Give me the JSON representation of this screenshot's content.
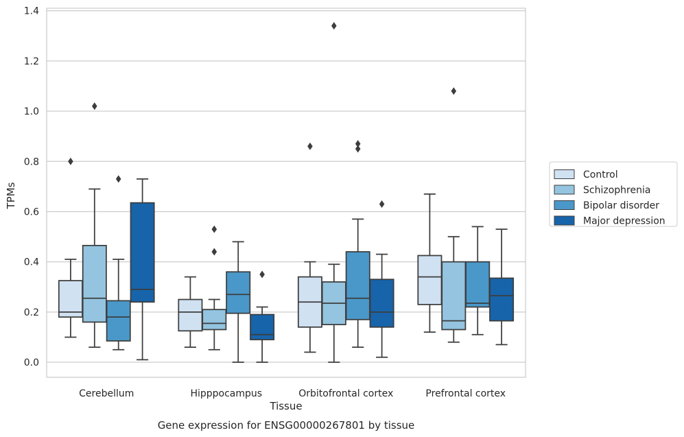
{
  "chart_data": {
    "type": "box",
    "xlabel": "Tissue",
    "ylabel": "TPMs",
    "caption": "Gene expression for ENSG00000267801 by tissue",
    "ylim": [
      -0.06,
      1.41
    ],
    "yticks": [
      "0.0",
      "0.2",
      "0.4",
      "0.6",
      "0.8",
      "1.0",
      "1.2",
      "1.4"
    ],
    "grid": "horizontal",
    "legend_position": "right",
    "categories": [
      "Cerebellum",
      "Hipppocampus",
      "Orbitofrontal cortex",
      "Prefrontal cortex"
    ],
    "series": [
      {
        "name": "Control",
        "color": "#d0e1f2",
        "boxes": [
          {
            "whislo": 0.1,
            "q1": 0.18,
            "med": 0.2,
            "q3": 0.325,
            "whishi": 0.41,
            "fliers": [
              0.8
            ]
          },
          {
            "whislo": 0.06,
            "q1": 0.125,
            "med": 0.2,
            "q3": 0.25,
            "whishi": 0.34,
            "fliers": []
          },
          {
            "whislo": 0.04,
            "q1": 0.14,
            "med": 0.24,
            "q3": 0.34,
            "whishi": 0.4,
            "fliers": [
              0.86
            ]
          },
          {
            "whislo": 0.12,
            "q1": 0.23,
            "med": 0.34,
            "q3": 0.425,
            "whishi": 0.67,
            "fliers": []
          }
        ]
      },
      {
        "name": "Schizophrenia",
        "color": "#94c4df",
        "boxes": [
          {
            "whislo": 0.06,
            "q1": 0.16,
            "med": 0.255,
            "q3": 0.465,
            "whishi": 0.69,
            "fliers": [
              1.02
            ]
          },
          {
            "whislo": 0.05,
            "q1": 0.13,
            "med": 0.155,
            "q3": 0.21,
            "whishi": 0.25,
            "fliers": [
              0.44,
              0.53
            ]
          },
          {
            "whislo": 0.0,
            "q1": 0.15,
            "med": 0.235,
            "q3": 0.32,
            "whishi": 0.39,
            "fliers": [
              1.34
            ]
          },
          {
            "whislo": 0.08,
            "q1": 0.13,
            "med": 0.165,
            "q3": 0.4,
            "whishi": 0.5,
            "fliers": [
              1.08
            ]
          }
        ]
      },
      {
        "name": "Bipolar disorder",
        "color": "#4a98c9",
        "boxes": [
          {
            "whislo": 0.05,
            "q1": 0.085,
            "med": 0.18,
            "q3": 0.245,
            "whishi": 0.41,
            "fliers": [
              0.73
            ]
          },
          {
            "whislo": 0.0,
            "q1": 0.195,
            "med": 0.27,
            "q3": 0.36,
            "whishi": 0.48,
            "fliers": []
          },
          {
            "whislo": 0.06,
            "q1": 0.17,
            "med": 0.255,
            "q3": 0.44,
            "whishi": 0.57,
            "fliers": [
              0.85,
              0.87
            ]
          },
          {
            "whislo": 0.11,
            "q1": 0.22,
            "med": 0.235,
            "q3": 0.4,
            "whishi": 0.54,
            "fliers": []
          }
        ]
      },
      {
        "name": "Major depression",
        "color": "#1764ab",
        "boxes": [
          {
            "whislo": 0.01,
            "q1": 0.24,
            "med": 0.29,
            "q3": 0.635,
            "whishi": 0.73,
            "fliers": []
          },
          {
            "whislo": 0.0,
            "q1": 0.09,
            "med": 0.11,
            "q3": 0.19,
            "whishi": 0.22,
            "fliers": [
              0.35
            ]
          },
          {
            "whislo": 0.02,
            "q1": 0.14,
            "med": 0.2,
            "q3": 0.33,
            "whishi": 0.43,
            "fliers": [
              0.63
            ]
          },
          {
            "whislo": 0.07,
            "q1": 0.165,
            "med": 0.265,
            "q3": 0.335,
            "whishi": 0.53,
            "fliers": []
          }
        ]
      }
    ]
  }
}
